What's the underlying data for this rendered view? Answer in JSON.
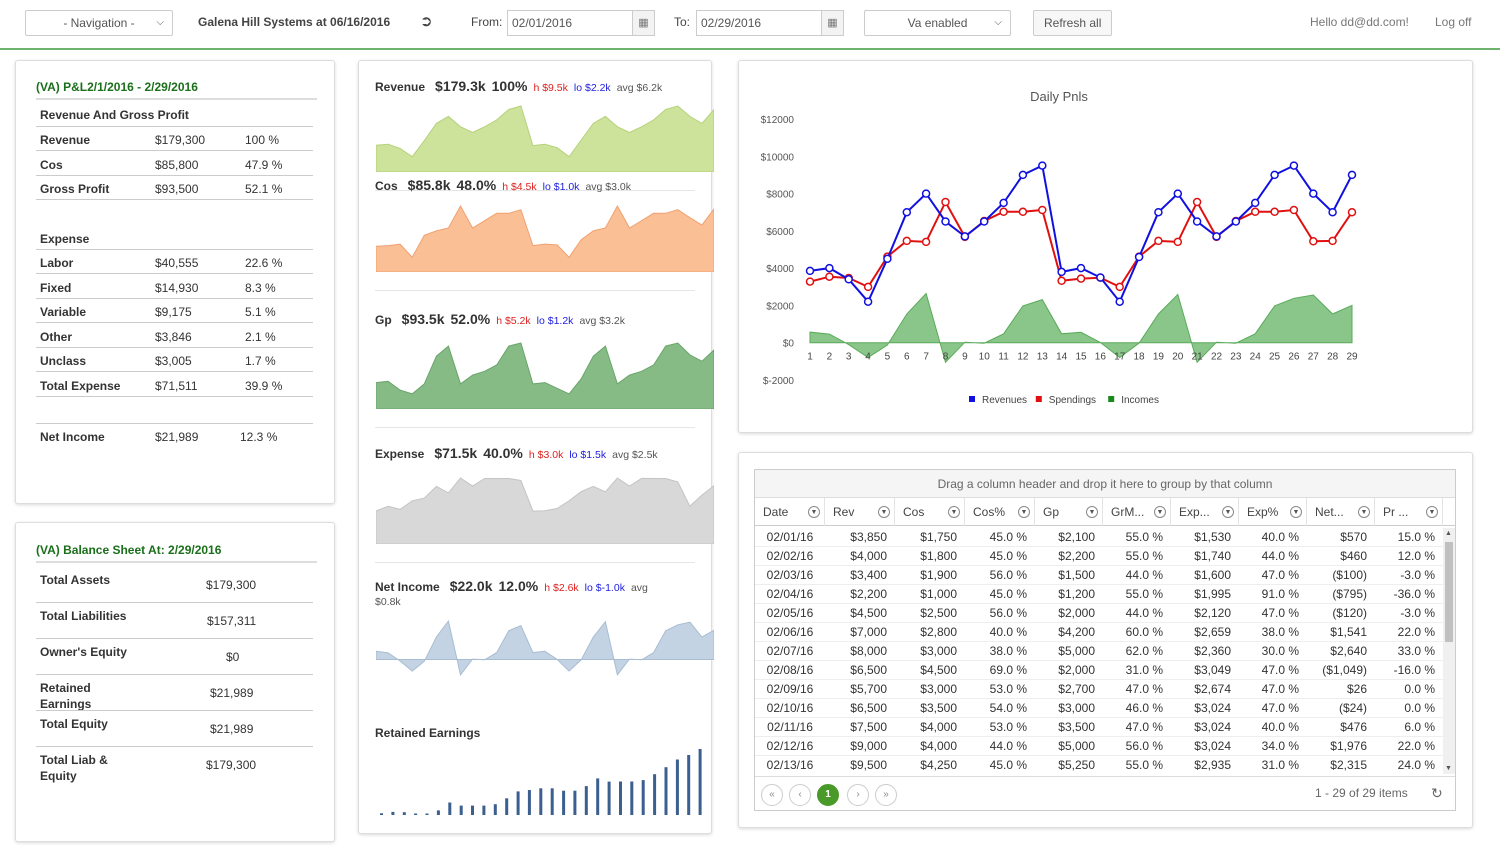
{
  "nav": {
    "label": "- Navigation -"
  },
  "company": "Galena Hill Systems at 06/16/2016",
  "from_label": "From:",
  "from_value": "02/01/2016",
  "to_label": "To:",
  "to_value": "02/29/2016",
  "va_select": "Va enabled",
  "refresh": "Refresh all",
  "hello": "Hello dd@dd.com!",
  "logoff": "Log off",
  "pl": {
    "title": "(VA) P&L2/1/2016 - 2/29/2016",
    "section1": "Revenue And Gross Profit",
    "rows1": [
      {
        "label": "Revenue",
        "amount": "$179,300",
        "pct": "100 %"
      },
      {
        "label": "Cos",
        "amount": "$85,800",
        "pct": "47.9 %"
      },
      {
        "label": "Gross Profit",
        "amount": "$93,500",
        "pct": "52.1 %"
      }
    ],
    "section2": "Expense",
    "rows2": [
      {
        "label": "Labor",
        "amount": "$40,555",
        "pct": "22.6 %"
      },
      {
        "label": "Fixed",
        "amount": "$14,930",
        "pct": "8.3 %"
      },
      {
        "label": "Variable",
        "amount": "$9,175",
        "pct": "5.1 %"
      },
      {
        "label": "Other",
        "amount": "$3,846",
        "pct": "2.1 %"
      },
      {
        "label": "Unclass",
        "amount": "$3,005",
        "pct": "1.7 %"
      },
      {
        "label": "Total Expense",
        "amount": "$71,511",
        "pct": "39.9 %"
      }
    ],
    "net": {
      "label": "Net Income",
      "amount": "$21,989",
      "pct": "12.3 %"
    }
  },
  "bs": {
    "title": "(VA) Balance Sheet At: 2/29/2016",
    "rows": [
      {
        "label": "Total Assets",
        "amount": "$179,300"
      },
      {
        "label": "Total Liabilities",
        "amount": "$157,311"
      },
      {
        "label": "Owner's Equity",
        "amount": "$0"
      },
      {
        "label": "Retained Earnings",
        "amount": "$21,989"
      },
      {
        "label": "Total Equity",
        "amount": "$21,989"
      },
      {
        "label": "Total Liab & Equity",
        "amount": "$179,300"
      }
    ]
  },
  "minis": [
    {
      "name": "Revenue",
      "total": "$179.3k",
      "pct": "100%",
      "hi": "h $9.5k",
      "lo": "lo $2.2k",
      "avg": "avg $6.2k",
      "color": "#cde29a",
      "stroke": "#b5d27a"
    },
    {
      "name": "Cos",
      "total": "$85.8k",
      "pct": "48.0%",
      "hi": "h $4.5k",
      "lo": "lo $1.0k",
      "avg": "avg $3.0k",
      "color": "#fbbf95",
      "stroke": "#f0a070"
    },
    {
      "name": "Gp",
      "total": "$93.5k",
      "pct": "52.0%",
      "hi": "h $5.2k",
      "lo": "lo $1.2k",
      "avg": "avg $3.2k",
      "color": "#86bb86",
      "stroke": "#6aa56a"
    },
    {
      "name": "Expense",
      "total": "$71.5k",
      "pct": "40.0%",
      "hi": "h $3.0k",
      "lo": "lo $1.5k",
      "avg": "avg $2.5k",
      "color": "#d8d8d8",
      "stroke": "#c4c4c4"
    },
    {
      "name": "Net Income",
      "total": "$22.0k",
      "pct": "12.0%",
      "hi": "h $2.6k",
      "lo": "lo $-1.0k",
      "avg": "avg",
      "avg2": "$0.8k",
      "color": "#c3d3e3",
      "stroke": "#a8bdd2"
    }
  ],
  "retained_label": "Retained Earnings",
  "daily_chart": {
    "chart_data": {
      "type": "line",
      "title": "Daily Pnls",
      "categories": [
        "1",
        "2",
        "3",
        "4",
        "5",
        "6",
        "7",
        "8",
        "9",
        "10",
        "11",
        "12",
        "13",
        "14",
        "15",
        "16",
        "17",
        "18",
        "19",
        "20",
        "21",
        "22",
        "23",
        "24",
        "25",
        "26",
        "27",
        "28",
        "29"
      ],
      "ylim": [
        -2000,
        12000
      ],
      "yticks": [
        "$12000",
        "$10000",
        "$8000",
        "$6000",
        "$4000",
        "$2000",
        "$0",
        "$-2000"
      ],
      "series": [
        {
          "name": "Revenues",
          "color": "#1010e0",
          "values": [
            3850,
            4000,
            3400,
            2200,
            4500,
            7000,
            8000,
            6500,
            5700,
            6500,
            7500,
            9000,
            9500,
            3800,
            4000,
            3500,
            2200,
            4600,
            7000,
            8000,
            6500,
            5700,
            6500,
            7500,
            9000,
            9500,
            8000,
            7000,
            9000
          ]
        },
        {
          "name": "Spendings",
          "color": "#e01010",
          "values": [
            3280,
            3540,
            3470,
            2995,
            4620,
            5460,
            5410,
            7549,
            5674,
            6530,
            7024,
            7024,
            7120,
            3320,
            3440,
            3490,
            2995,
            4620,
            5460,
            5410,
            7549,
            5674,
            6530,
            7024,
            7024,
            7120,
            5440,
            5460,
            7000
          ]
        },
        {
          "name": "Incomes",
          "color": "#1a8a1a",
          "values": [
            570,
            460,
            -100,
            -795,
            -120,
            1541,
            2640,
            -1049,
            26,
            -24,
            476,
            1976,
            2315,
            480,
            560,
            10,
            -795,
            -20,
            1541,
            2590,
            -1049,
            26,
            -24,
            476,
            1976,
            2380,
            2560,
            1540,
            2000
          ]
        }
      ]
    }
  },
  "grid": {
    "group_hint": "Drag a column header and drop it here to group by that column",
    "columns": [
      "Date",
      "Rev",
      "Cos",
      "Cos%",
      "Gp",
      "GrM...",
      "Exp...",
      "Exp%",
      "Net...",
      "Pr ..."
    ],
    "rows": [
      [
        "02/01/16",
        "$3,850",
        "$1,750",
        "45.0 %",
        "$2,100",
        "55.0 %",
        "$1,530",
        "40.0 %",
        "$570",
        "15.0 %"
      ],
      [
        "02/02/16",
        "$4,000",
        "$1,800",
        "45.0 %",
        "$2,200",
        "55.0 %",
        "$1,740",
        "44.0 %",
        "$460",
        "12.0 %"
      ],
      [
        "02/03/16",
        "$3,400",
        "$1,900",
        "56.0 %",
        "$1,500",
        "44.0 %",
        "$1,600",
        "47.0 %",
        "($100)",
        "-3.0 %"
      ],
      [
        "02/04/16",
        "$2,200",
        "$1,000",
        "45.0 %",
        "$1,200",
        "55.0 %",
        "$1,995",
        "91.0 %",
        "($795)",
        "-36.0 %"
      ],
      [
        "02/05/16",
        "$4,500",
        "$2,500",
        "56.0 %",
        "$2,000",
        "44.0 %",
        "$2,120",
        "47.0 %",
        "($120)",
        "-3.0 %"
      ],
      [
        "02/06/16",
        "$7,000",
        "$2,800",
        "40.0 %",
        "$4,200",
        "60.0 %",
        "$2,659",
        "38.0 %",
        "$1,541",
        "22.0 %"
      ],
      [
        "02/07/16",
        "$8,000",
        "$3,000",
        "38.0 %",
        "$5,000",
        "62.0 %",
        "$2,360",
        "30.0 %",
        "$2,640",
        "33.0 %"
      ],
      [
        "02/08/16",
        "$6,500",
        "$4,500",
        "69.0 %",
        "$2,000",
        "31.0 %",
        "$3,049",
        "47.0 %",
        "($1,049)",
        "-16.0 %"
      ],
      [
        "02/09/16",
        "$5,700",
        "$3,000",
        "53.0 %",
        "$2,700",
        "47.0 %",
        "$2,674",
        "47.0 %",
        "$26",
        "0.0 %"
      ],
      [
        "02/10/16",
        "$6,500",
        "$3,500",
        "54.0 %",
        "$3,000",
        "46.0 %",
        "$3,024",
        "47.0 %",
        "($24)",
        "0.0 %"
      ],
      [
        "02/11/16",
        "$7,500",
        "$4,000",
        "53.0 %",
        "$3,500",
        "47.0 %",
        "$3,024",
        "40.0 %",
        "$476",
        "6.0 %"
      ],
      [
        "02/12/16",
        "$9,000",
        "$4,000",
        "44.0 %",
        "$5,000",
        "56.0 %",
        "$3,024",
        "34.0 %",
        "$1,976",
        "22.0 %"
      ],
      [
        "02/13/16",
        "$9,500",
        "$4,250",
        "45.0 %",
        "$5,250",
        "55.0 %",
        "$2,935",
        "31.0 %",
        "$2,315",
        "24.0 %"
      ]
    ],
    "page": "1",
    "items_text": "1 - 29 of 29 items"
  }
}
